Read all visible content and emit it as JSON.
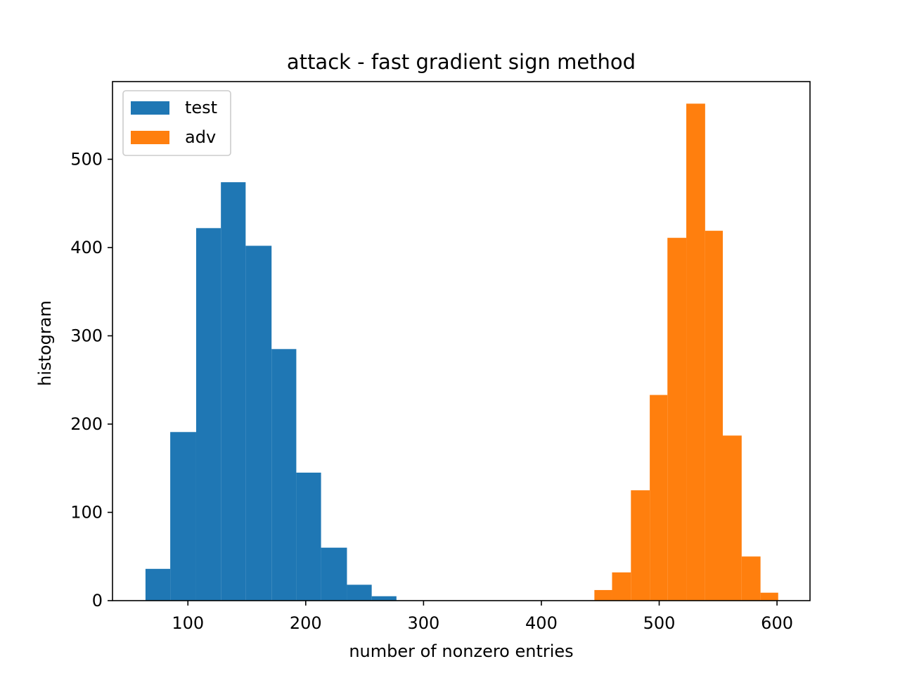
{
  "chart_data": {
    "type": "histogram",
    "title": "attack - fast gradient sign method",
    "xlabel": "number of nonzero entries",
    "ylabel": "histogram",
    "xlim": [
      36,
      628
    ],
    "ylim": [
      0,
      588
    ],
    "xticks": [
      100,
      200,
      300,
      400,
      500,
      600
    ],
    "yticks": [
      0,
      100,
      200,
      300,
      400,
      500
    ],
    "grid": false,
    "legend_position": "top-left",
    "series": [
      {
        "name": "test",
        "color": "#1f77b4",
        "bins": [
          {
            "x0": 64,
            "x1": 85,
            "count": 36
          },
          {
            "x0": 85,
            "x1": 107,
            "count": 191
          },
          {
            "x0": 107,
            "x1": 128,
            "count": 422
          },
          {
            "x0": 128,
            "x1": 149,
            "count": 474
          },
          {
            "x0": 149,
            "x1": 171,
            "count": 402
          },
          {
            "x0": 171,
            "x1": 192,
            "count": 285
          },
          {
            "x0": 192,
            "x1": 213,
            "count": 145
          },
          {
            "x0": 213,
            "x1": 235,
            "count": 60
          },
          {
            "x0": 235,
            "x1": 256,
            "count": 18
          },
          {
            "x0": 256,
            "x1": 277,
            "count": 5
          }
        ]
      },
      {
        "name": "adv",
        "color": "#ff7f0e",
        "bins": [
          {
            "x0": 445,
            "x1": 460,
            "count": 12
          },
          {
            "x0": 460,
            "x1": 476,
            "count": 32
          },
          {
            "x0": 476,
            "x1": 492,
            "count": 125
          },
          {
            "x0": 492,
            "x1": 507,
            "count": 233
          },
          {
            "x0": 507,
            "x1": 523,
            "count": 411
          },
          {
            "x0": 523,
            "x1": 539,
            "count": 563
          },
          {
            "x0": 539,
            "x1": 554,
            "count": 419
          },
          {
            "x0": 554,
            "x1": 570,
            "count": 187
          },
          {
            "x0": 570,
            "x1": 586,
            "count": 50
          },
          {
            "x0": 586,
            "x1": 601,
            "count": 9
          }
        ]
      }
    ]
  }
}
